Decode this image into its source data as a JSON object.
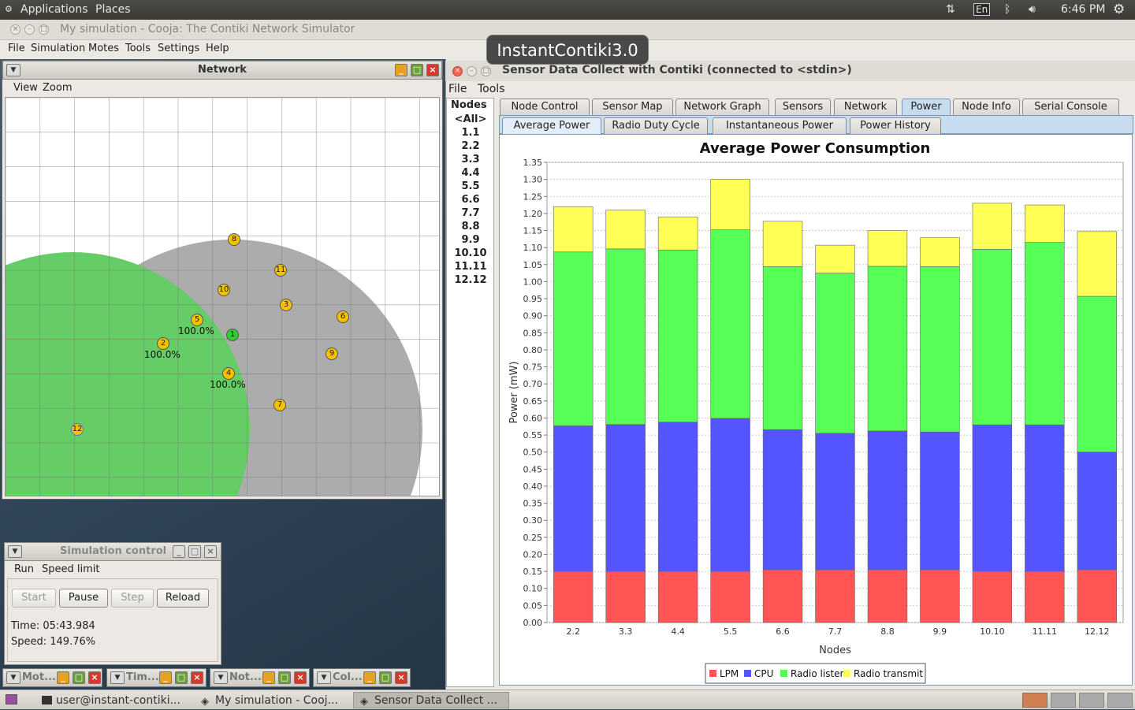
{
  "top_panel": {
    "applications": "Applications",
    "places": "Places",
    "keyboard": "En",
    "clock": "6:46 PM"
  },
  "cooja": {
    "title": "My simulation - Cooja: The Contiki Network Simulator",
    "menu": [
      "File",
      "Simulation",
      "Motes",
      "Tools",
      "Settings",
      "Help"
    ]
  },
  "tooltip": "InstantContiki3.0",
  "network": {
    "title": "Network",
    "menu": [
      "View",
      "Zoom"
    ],
    "motes": [
      {
        "id": "8",
        "color": "#f4c000"
      },
      {
        "id": "11",
        "color": "#f4c000"
      },
      {
        "id": "10",
        "color": "#f4c000"
      },
      {
        "id": "3",
        "color": "#f4c000"
      },
      {
        "id": "6",
        "color": "#f4c000"
      },
      {
        "id": "5",
        "color": "#f4c000"
      },
      {
        "id": "1",
        "color": "#33cc33"
      },
      {
        "id": "2",
        "color": "#f4c000"
      },
      {
        "id": "9",
        "color": "#f4c000"
      },
      {
        "id": "4",
        "color": "#f4c000"
      },
      {
        "id": "7",
        "color": "#f4c000"
      },
      {
        "id": "12",
        "color": "#f4c000"
      }
    ],
    "percent_labels": [
      "100.0%",
      "100.0%",
      "100.0%"
    ]
  },
  "simctl": {
    "title": "Simulation control",
    "menu": [
      "Run",
      "Speed limit"
    ],
    "buttons": {
      "start": "Start",
      "pause": "Pause",
      "step": "Step",
      "reload": "Reload"
    },
    "time": "Time: 05:43.984",
    "speed": "Speed: 149.76%"
  },
  "minimized": [
    "Mot...",
    "Tim...",
    "Not...",
    "Col..."
  ],
  "sensor": {
    "title": "Sensor Data Collect with Contiki (connected to <stdin>)",
    "menu": [
      "File",
      "Tools"
    ],
    "nodes_header": "Nodes",
    "nodes": [
      "<All>",
      "1.1",
      "2.2",
      "3.3",
      "4.4",
      "5.5",
      "6.6",
      "7.7",
      "8.8",
      "9.9",
      "10.10",
      "11.11",
      "12.12"
    ],
    "tabs": [
      "Node Control",
      "Sensor Map",
      "Network Graph",
      "Sensors",
      "Network",
      "Power",
      "Node Info",
      "Serial Console"
    ],
    "selected_tab": "Power",
    "subtabs": [
      "Average Power",
      "Radio Duty Cycle",
      "Instantaneous Power",
      "Power History"
    ],
    "selected_subtab": "Average Power"
  },
  "chart_data": {
    "type": "bar",
    "stacked": true,
    "title": "Average Power Consumption",
    "xlabel": "Nodes",
    "ylabel": "Power (mW)",
    "ylim": [
      0,
      1.35
    ],
    "ystep": 0.05,
    "categories": [
      "2.2",
      "3.3",
      "4.4",
      "5.5",
      "6.6",
      "7.7",
      "8.8",
      "9.9",
      "10.10",
      "11.11",
      "12.12"
    ],
    "series": [
      {
        "name": "LPM",
        "color": "#ff5555",
        "values": [
          0.15,
          0.15,
          0.15,
          0.15,
          0.155,
          0.155,
          0.155,
          0.155,
          0.15,
          0.15,
          0.155
        ]
      },
      {
        "name": "CPU",
        "color": "#5555ff",
        "values": [
          0.427,
          0.431,
          0.438,
          0.449,
          0.411,
          0.4,
          0.407,
          0.404,
          0.43,
          0.43,
          0.345
        ]
      },
      {
        "name": "Radio listen",
        "color": "#55ff55",
        "values": [
          0.51,
          0.515,
          0.505,
          0.553,
          0.478,
          0.47,
          0.483,
          0.485,
          0.515,
          0.535,
          0.457
        ]
      },
      {
        "name": "Radio transmit",
        "color": "#ffff55",
        "values": [
          0.133,
          0.114,
          0.097,
          0.148,
          0.133,
          0.082,
          0.105,
          0.085,
          0.135,
          0.11,
          0.19
        ]
      }
    ],
    "legend_position": "bottom",
    "grid": true
  },
  "taskbar": {
    "items": [
      "user@instant-contiki...",
      "My simulation - Cooj...",
      "Sensor Data Collect ..."
    ]
  }
}
